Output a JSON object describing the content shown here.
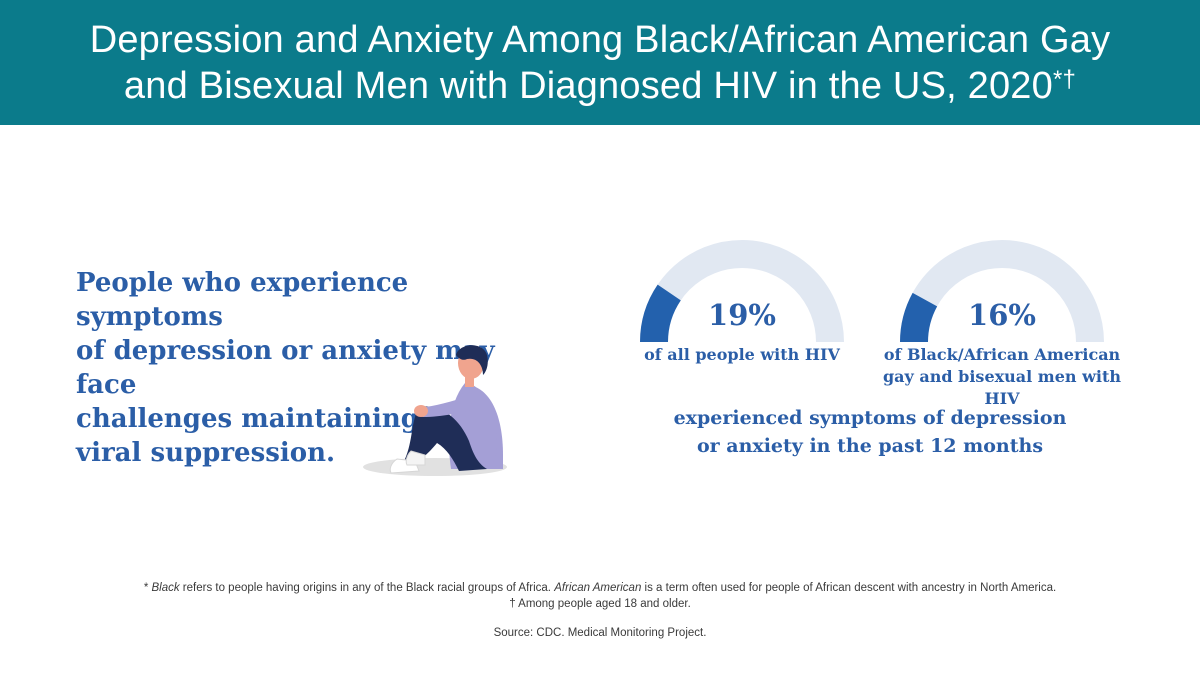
{
  "header": {
    "title_line1": "Depression and Anxiety Among Black/African American Gay",
    "title_line2": "and Bisexual Men with Diagnosed HIV in the US, 2020",
    "title_marks": "*†"
  },
  "lead": {
    "line1": "People who experience symptoms",
    "line2": "of depression or anxiety may face",
    "line3": "challenges maintaining",
    "line4": "viral suppression."
  },
  "chart_data": {
    "type": "gauge",
    "scale_max": 100,
    "series": [
      {
        "value": 19,
        "value_label": "19%",
        "label_line1": "of all people with HIV",
        "label_line2": ""
      },
      {
        "value": 16,
        "value_label": "16%",
        "label_line1": "of Black/African American",
        "label_line2": "gay and bisexual men with HIV"
      }
    ],
    "summary_line1": "experienced symptoms of depression",
    "summary_line2": "or anxiety in the past 12 months",
    "colors": {
      "fill": "#2361ad",
      "track": "#e1e8f2"
    }
  },
  "colors": {
    "header_bg": "#0b7b8b",
    "text_blue": "#2b5ea7",
    "figure_shirt": "#a49fd6",
    "figure_pants": "#1f2d57",
    "figure_hair": "#1f2d57",
    "figure_skin": "#f0a48e",
    "figure_shadow": "#e1e1e1"
  },
  "icons": {
    "figure": "sitting-person-illustration"
  },
  "footnotes": {
    "note1_prefix": "* ",
    "note1_term1": "Black",
    "note1_mid": " refers to people having origins in any of the Black racial groups of Africa. ",
    "note1_term2": "African American",
    "note1_end": " is a term often used for people of African descent with ancestry in North America.",
    "note2": "† Among people aged 18 and older.",
    "source": "Source: CDC. Medical Monitoring Project."
  }
}
